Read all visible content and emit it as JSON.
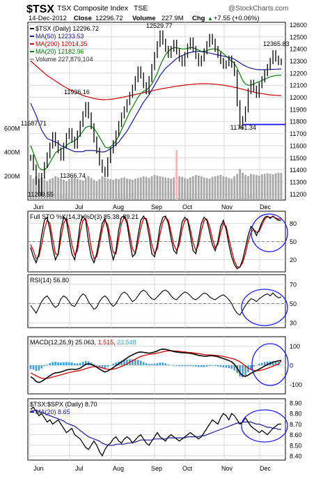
{
  "header": {
    "symbol": "$TSX",
    "name": "TSX Composite Index",
    "exchange": "TSE",
    "watermark": "@StockCharts.com",
    "date": "14-Dec-2012",
    "close_label": "Close",
    "close_value": "12296.72",
    "volume_label": "Volume",
    "volume_value": "227.9M",
    "chg_label": "Chg",
    "chg_value": "+7.55 (+0.06%)",
    "chg_arrow": "▲"
  },
  "colors": {
    "price": "#000000",
    "ma50": "#1a1a9c",
    "ma200": "#cc0000",
    "ma20": "#0a7a0a",
    "volume": "#a9a9a9",
    "volume_up": "#f4b5b5",
    "grid": "#d8d8d8",
    "annotation": "#1a1aff",
    "sto_k": "#000000",
    "sto_d": "#cc0000",
    "macd_hist": "#3f9fd6",
    "ratio": "#000000",
    "ratio_ma": "#1a1a9c"
  },
  "x_labels": [
    "Jun",
    "Jul",
    "Aug",
    "Sep",
    "Oct",
    "Nov",
    "Dec"
  ],
  "chart_data": [
    {
      "type": "line",
      "title": "$TSX (Daily) 12296.72",
      "legend": [
        {
          "name": "MA(50) 12233.53",
          "color": "#1a1a9c"
        },
        {
          "name": "MA(200) 12014.35",
          "color": "#cc0000"
        },
        {
          "name": "MA(20) 12182.96",
          "color": "#0a7a0a"
        },
        {
          "name": "Volume 227,879,104",
          "color": "#a9a9a9"
        }
      ],
      "ylim": [
        11150,
        12620
      ],
      "y_ticks": [
        11200,
        11300,
        11400,
        11500,
        11600,
        11700,
        11800,
        11900,
        12000,
        12100,
        12200,
        12300,
        12400,
        12500,
        12600
      ],
      "volume_ticks": [
        "200M",
        "400M",
        "600M"
      ],
      "annotations": [
        "11687.71",
        "11936.16",
        "11366.74",
        "11209.55",
        "12529.77",
        "11761.34",
        "12365.83"
      ],
      "support_level": 11775,
      "price": [
        11500,
        11420,
        11300,
        11209,
        11350,
        11440,
        11520,
        11600,
        11687,
        11620,
        11560,
        11500,
        11600,
        11680,
        11720,
        11650,
        11600,
        11700,
        11780,
        11860,
        11936,
        11850,
        11760,
        11650,
        11560,
        11460,
        11400,
        11366,
        11480,
        11560,
        11620,
        11700,
        11780,
        11850,
        11900,
        11960,
        12020,
        12080,
        12150,
        12230,
        12180,
        12100,
        12050,
        12150,
        12250,
        12350,
        12440,
        12529,
        12460,
        12400,
        12350,
        12400,
        12450,
        12380,
        12320,
        12280,
        12350,
        12420,
        12470,
        12400,
        12340,
        12280,
        12320,
        12380,
        12440,
        12500,
        12460,
        12400,
        12350,
        12300,
        12260,
        12280,
        12320,
        12270,
        12200,
        11950,
        11761,
        11820,
        11900,
        12050,
        12120,
        12070,
        12020,
        12100,
        12150,
        12200,
        12250,
        12300,
        12365,
        12320,
        12290,
        12296
      ],
      "ma50": [
        11950,
        11900,
        11850,
        11790,
        11730,
        11690,
        11660,
        11650,
        11640,
        11630,
        11620,
        11600,
        11590,
        11580,
        11570,
        11560,
        11550,
        11550,
        11550,
        11550,
        11560,
        11560,
        11560,
        11560,
        11555,
        11550,
        11548,
        11550,
        11560,
        11575,
        11590,
        11610,
        11630,
        11660,
        11690,
        11720,
        11760,
        11800,
        11840,
        11880,
        11920,
        11960,
        11990,
        12020,
        12060,
        12100,
        12140,
        12180,
        12210,
        12240,
        12260,
        12280,
        12300,
        12320,
        12335,
        12345,
        12355,
        12365,
        12370,
        12375,
        12380,
        12380,
        12378,
        12375,
        12370,
        12365,
        12360,
        12355,
        12350,
        12345,
        12340,
        12335,
        12330,
        12325,
        12315,
        12300,
        12285,
        12270,
        12258,
        12248,
        12240,
        12235,
        12230,
        12228,
        12228,
        12228,
        12229,
        12230,
        12231,
        12232,
        12233,
        12233.53
      ],
      "ma200": [
        12300,
        12280,
        12260,
        12240,
        12220,
        12200,
        12180,
        12165,
        12150,
        12135,
        12120,
        12105,
        12090,
        12078,
        12066,
        12055,
        12045,
        12035,
        12025,
        12015,
        12008,
        12002,
        11996,
        11990,
        11986,
        11983,
        11980,
        11980,
        11981,
        11983,
        11986,
        11990,
        11994,
        11998,
        12003,
        12008,
        12013,
        12018,
        12023,
        12028,
        12033,
        12038,
        12043,
        12048,
        12053,
        12058,
        12063,
        12068,
        12072,
        12076,
        12080,
        12084,
        12088,
        12092,
        12095,
        12098,
        12101,
        12104,
        12106,
        12108,
        12110,
        12111,
        12112,
        12112,
        12112,
        12111,
        12110,
        12108,
        12106,
        12103,
        12100,
        12096,
        12092,
        12088,
        12083,
        12078,
        12072,
        12066,
        12060,
        12054,
        12048,
        12043,
        12038,
        12034,
        12030,
        12026,
        12023,
        12020,
        12018,
        12016,
        12015,
        12014.35
      ],
      "ma20": [
        11600,
        11540,
        11480,
        11420,
        11400,
        11400,
        11420,
        11460,
        11500,
        11540,
        11560,
        11570,
        11580,
        11600,
        11620,
        11630,
        11640,
        11660,
        11690,
        11720,
        11750,
        11760,
        11760,
        11740,
        11710,
        11670,
        11630,
        11590,
        11580,
        11590,
        11610,
        11640,
        11680,
        11730,
        11780,
        11830,
        11880,
        11920,
        11960,
        12000,
        12030,
        12050,
        12060,
        12080,
        12110,
        12150,
        12200,
        12260,
        12310,
        12350,
        12380,
        12400,
        12410,
        12410,
        12405,
        12400,
        12400,
        12405,
        12410,
        12410,
        12400,
        12390,
        12380,
        12380,
        12385,
        12395,
        12400,
        12400,
        12395,
        12380,
        12360,
        12340,
        12320,
        12300,
        12280,
        12240,
        12190,
        12140,
        12110,
        12100,
        12100,
        12110,
        12120,
        12130,
        12140,
        12150,
        12160,
        12170,
        12175,
        12180,
        12182,
        12182.96
      ],
      "volume": [
        210,
        180,
        200,
        230,
        190,
        170,
        160,
        175,
        185,
        200,
        190,
        180,
        170,
        160,
        175,
        190,
        185,
        180,
        170,
        165,
        190,
        200,
        185,
        170,
        160,
        175,
        200,
        190,
        180,
        175,
        170,
        180,
        175,
        185,
        190,
        180,
        175,
        170,
        180,
        185,
        190,
        200,
        195,
        185,
        200,
        210,
        205,
        200,
        195,
        190,
        185,
        180,
        190,
        420,
        200,
        195,
        185,
        180,
        190,
        200,
        210,
        205,
        200,
        190,
        185,
        180,
        195,
        200,
        205,
        210,
        200,
        195,
        185,
        180,
        200,
        220,
        260,
        230,
        210,
        200,
        220,
        215,
        210,
        205,
        215,
        220,
        225,
        220,
        215,
        225,
        230,
        228
      ]
    },
    {
      "type": "line",
      "title": "Full STO %K(14,3) %D(3) 85.38, 89.21",
      "series_k_name": "%K(14,3)",
      "ylim": [
        0,
        100
      ],
      "y_ticks": [
        20,
        50,
        80
      ],
      "k": [
        40,
        25,
        15,
        30,
        60,
        85,
        90,
        70,
        40,
        20,
        30,
        70,
        90,
        85,
        55,
        30,
        20,
        45,
        80,
        92,
        85,
        50,
        25,
        15,
        30,
        55,
        80,
        88,
        70,
        40,
        20,
        35,
        70,
        90,
        92,
        80,
        50,
        25,
        30,
        60,
        85,
        92,
        85,
        60,
        30,
        25,
        45,
        75,
        90,
        92,
        80,
        55,
        35,
        30,
        55,
        82,
        90,
        85,
        60,
        35,
        30,
        55,
        80,
        90,
        85,
        65,
        45,
        35,
        50,
        75,
        85,
        70,
        45,
        25,
        12,
        5,
        8,
        20,
        40,
        60,
        75,
        70,
        60,
        70,
        82,
        90,
        92,
        88,
        92,
        88,
        85,
        85.38
      ],
      "d": [
        45,
        35,
        22,
        25,
        45,
        70,
        85,
        80,
        55,
        30,
        28,
        55,
        80,
        88,
        70,
        45,
        28,
        35,
        65,
        85,
        88,
        70,
        40,
        22,
        25,
        45,
        70,
        85,
        78,
        55,
        32,
        30,
        55,
        80,
        90,
        85,
        62,
        38,
        30,
        48,
        72,
        88,
        88,
        72,
        45,
        30,
        38,
        62,
        82,
        90,
        85,
        65,
        45,
        35,
        45,
        70,
        85,
        87,
        70,
        48,
        35,
        45,
        68,
        85,
        87,
        75,
        55,
        40,
        45,
        65,
        80,
        75,
        55,
        35,
        18,
        8,
        8,
        15,
        30,
        50,
        65,
        70,
        65,
        67,
        77,
        87,
        91,
        90,
        91,
        89,
        87,
        89.21
      ]
    },
    {
      "type": "line",
      "title": "RSI(14) 56.80",
      "ylim": [
        25,
        80
      ],
      "y_ticks": [
        30,
        50,
        70
      ],
      "values": [
        48,
        44,
        40,
        46,
        52,
        56,
        58,
        54,
        49,
        46,
        48,
        55,
        58,
        56,
        52,
        48,
        47,
        52,
        57,
        60,
        58,
        52,
        48,
        44,
        46,
        52,
        56,
        58,
        55,
        50,
        47,
        50,
        55,
        60,
        62,
        60,
        56,
        52,
        54,
        58,
        62,
        64,
        62,
        58,
        55,
        54,
        57,
        60,
        63,
        64,
        62,
        58,
        55,
        54,
        57,
        60,
        62,
        61,
        58,
        55,
        54,
        56,
        59,
        61,
        60,
        57,
        55,
        54,
        56,
        58,
        59,
        57,
        54,
        50,
        44,
        40,
        38,
        43,
        48,
        52,
        55,
        54,
        52,
        55,
        57,
        59,
        60,
        58,
        61,
        58,
        56,
        56.8
      ]
    },
    {
      "type": "line",
      "title": "MACD(12,26,9) 25.063, 1.515, 23.548",
      "values_labels": [
        "25.063",
        "1.515",
        "23.548"
      ],
      "ylim": [
        -150,
        150
      ],
      "y_ticks": [
        -100,
        0,
        100
      ],
      "macd": [
        -60,
        -70,
        -85,
        -90,
        -85,
        -75,
        -65,
        -55,
        -45,
        -40,
        -38,
        -35,
        -30,
        -25,
        -22,
        -20,
        -22,
        -20,
        -15,
        -5,
        5,
        8,
        5,
        -2,
        -10,
        -20,
        -28,
        -35,
        -30,
        -22,
        -12,
        -2,
        8,
        18,
        28,
        38,
        48,
        55,
        62,
        68,
        70,
        68,
        65,
        64,
        66,
        70,
        75,
        82,
        85,
        84,
        80,
        76,
        72,
        70,
        68,
        66,
        65,
        64,
        63,
        60,
        56,
        52,
        50,
        48,
        48,
        50,
        50,
        48,
        45,
        40,
        35,
        30,
        25,
        18,
        5,
        -15,
        -40,
        -55,
        -58,
        -52,
        -42,
        -35,
        -28,
        -20,
        -12,
        -4,
        4,
        10,
        16,
        20,
        23,
        25.063
      ],
      "signal": [
        -40,
        -48,
        -55,
        -62,
        -68,
        -70,
        -69,
        -66,
        -62,
        -58,
        -54,
        -50,
        -46,
        -42,
        -38,
        -35,
        -32,
        -30,
        -27,
        -23,
        -18,
        -13,
        -9,
        -7,
        -7,
        -10,
        -14,
        -18,
        -21,
        -22,
        -20,
        -17,
        -12,
        -6,
        0,
        8,
        16,
        24,
        32,
        40,
        46,
        51,
        54,
        57,
        59,
        61,
        64,
        67,
        71,
        74,
        76,
        76,
        75,
        74,
        73,
        71,
        70,
        68,
        67,
        65,
        63,
        61,
        59,
        57,
        55,
        54,
        53,
        52,
        51,
        49,
        46,
        43,
        40,
        36,
        32,
        26,
        18,
        8,
        -4,
        -15,
        -22,
        -27,
        -29,
        -28,
        -25,
        -21,
        -16,
        -10,
        -5,
        1,
        6,
        23.548
      ],
      "histogram": [
        -20,
        -22,
        -30,
        -28,
        -17,
        -5,
        4,
        11,
        17,
        18,
        16,
        15,
        16,
        17,
        16,
        15,
        10,
        10,
        12,
        18,
        23,
        21,
        14,
        5,
        -3,
        -10,
        -14,
        -17,
        -9,
        0,
        8,
        15,
        20,
        24,
        28,
        30,
        32,
        31,
        30,
        28,
        24,
        17,
        11,
        7,
        7,
        9,
        11,
        15,
        14,
        10,
        4,
        0,
        -3,
        -4,
        -5,
        -5,
        -5,
        -4,
        -4,
        -5,
        -7,
        -9,
        -9,
        -9,
        -7,
        -4,
        -3,
        -4,
        -6,
        -9,
        -11,
        -13,
        -15,
        -18,
        -27,
        -41,
        -58,
        -63,
        -54,
        -37,
        -20,
        -8,
        1,
        8,
        13,
        17,
        20,
        20,
        21,
        19,
        17,
        1.515
      ]
    },
    {
      "type": "line",
      "title": "$TSX:$SPX (Daily) 8.70",
      "legend": [
        {
          "name": "MA(20) 8.65",
          "color": "#1a1a9c"
        }
      ],
      "ylim": [
        8.36,
        8.94
      ],
      "y_ticks": [
        8.4,
        8.5,
        8.6,
        8.7,
        8.8,
        8.9
      ],
      "values": [
        8.84,
        8.86,
        8.82,
        8.78,
        8.8,
        8.76,
        8.72,
        8.74,
        8.7,
        8.72,
        8.74,
        8.7,
        8.66,
        8.62,
        8.64,
        8.66,
        8.6,
        8.58,
        8.56,
        8.52,
        8.48,
        8.46,
        8.5,
        8.54,
        8.5,
        8.44,
        8.4,
        8.46,
        8.5,
        8.52,
        8.56,
        8.58,
        8.54,
        8.52,
        8.56,
        8.58,
        8.56,
        8.52,
        8.55,
        8.58,
        8.6,
        8.56,
        8.52,
        8.5,
        8.54,
        8.58,
        8.62,
        8.58,
        8.56,
        8.54,
        8.58,
        8.6,
        8.58,
        8.56,
        8.54,
        8.56,
        8.58,
        8.6,
        8.62,
        8.6,
        8.58,
        8.56,
        8.58,
        8.62,
        8.66,
        8.7,
        8.74,
        8.72,
        8.7,
        8.76,
        8.8,
        8.78,
        8.74,
        8.8,
        8.78,
        8.74,
        8.7,
        8.72,
        8.76,
        8.72,
        8.68,
        8.66,
        8.64,
        8.62,
        8.64,
        8.62,
        8.6,
        8.63,
        8.66,
        8.68,
        8.7,
        8.7
      ],
      "ma": [
        8.82,
        8.83,
        8.83,
        8.82,
        8.81,
        8.8,
        8.79,
        8.78,
        8.77,
        8.76,
        8.75,
        8.74,
        8.73,
        8.71,
        8.7,
        8.69,
        8.68,
        8.66,
        8.64,
        8.62,
        8.6,
        8.58,
        8.57,
        8.56,
        8.55,
        8.54,
        8.52,
        8.51,
        8.5,
        8.5,
        8.5,
        8.51,
        8.51,
        8.51,
        8.51,
        8.52,
        8.52,
        8.53,
        8.53,
        8.54,
        8.55,
        8.55,
        8.55,
        8.55,
        8.55,
        8.56,
        8.56,
        8.56,
        8.56,
        8.56,
        8.57,
        8.57,
        8.57,
        8.57,
        8.57,
        8.57,
        8.57,
        8.58,
        8.58,
        8.58,
        8.58,
        8.58,
        8.59,
        8.59,
        8.6,
        8.61,
        8.62,
        8.63,
        8.64,
        8.65,
        8.66,
        8.67,
        8.68,
        8.69,
        8.7,
        8.71,
        8.71,
        8.72,
        8.72,
        8.72,
        8.72,
        8.71,
        8.7,
        8.7,
        8.69,
        8.68,
        8.67,
        8.67,
        8.66,
        8.66,
        8.65,
        8.65
      ]
    }
  ]
}
